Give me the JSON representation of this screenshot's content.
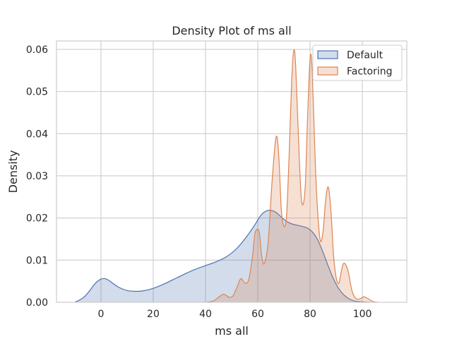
{
  "chart_data": {
    "type": "area",
    "title": "Density Plot of ms all",
    "xlabel": "ms all",
    "ylabel": "Density",
    "xlim": [
      -17,
      117
    ],
    "ylim": [
      0,
      0.062
    ],
    "x_ticks": [
      0,
      20,
      40,
      60,
      80,
      100
    ],
    "y_ticks": [
      0.0,
      0.01,
      0.02,
      0.03,
      0.04,
      0.05,
      0.06
    ],
    "x_tick_labels": [
      "0",
      "20",
      "40",
      "60",
      "80",
      "100"
    ],
    "y_tick_labels": [
      "0.00",
      "0.01",
      "0.02",
      "0.03",
      "0.04",
      "0.05",
      "0.06"
    ],
    "grid": true,
    "legend_position": "top-right",
    "series": [
      {
        "name": "Default",
        "color": "#4c72b0",
        "points": [
          [
            -10,
            0.0
          ],
          [
            -8,
            0.0006
          ],
          [
            -6,
            0.0015
          ],
          [
            -4,
            0.003
          ],
          [
            -2,
            0.0046
          ],
          [
            0,
            0.0055
          ],
          [
            1.5,
            0.0056
          ],
          [
            3,
            0.0052
          ],
          [
            5,
            0.0043
          ],
          [
            7,
            0.0035
          ],
          [
            10,
            0.0028
          ],
          [
            13,
            0.0026
          ],
          [
            16,
            0.0027
          ],
          [
            20,
            0.0033
          ],
          [
            24,
            0.0043
          ],
          [
            28,
            0.0055
          ],
          [
            32,
            0.0067
          ],
          [
            36,
            0.0078
          ],
          [
            40,
            0.0087
          ],
          [
            44,
            0.0096
          ],
          [
            48,
            0.0108
          ],
          [
            52,
            0.0128
          ],
          [
            56,
            0.0158
          ],
          [
            59,
            0.0185
          ],
          [
            61,
            0.0205
          ],
          [
            63,
            0.0216
          ],
          [
            65,
            0.0218
          ],
          [
            67,
            0.0213
          ],
          [
            69,
            0.0202
          ],
          [
            71,
            0.0192
          ],
          [
            73,
            0.0186
          ],
          [
            75,
            0.0183
          ],
          [
            77,
            0.018
          ],
          [
            79,
            0.0176
          ],
          [
            81,
            0.0166
          ],
          [
            83,
            0.0147
          ],
          [
            85,
            0.0118
          ],
          [
            87,
            0.0085
          ],
          [
            89,
            0.0055
          ],
          [
            91,
            0.0032
          ],
          [
            93,
            0.0017
          ],
          [
            95,
            0.0008
          ],
          [
            97,
            0.0003
          ],
          [
            100,
            0.0001
          ],
          [
            103,
            0.0
          ]
        ]
      },
      {
        "name": "Factoring",
        "color": "#dd8452",
        "points": [
          [
            40,
            0.0
          ],
          [
            43,
            0.0003
          ],
          [
            45,
            0.0012
          ],
          [
            47,
            0.0019
          ],
          [
            49,
            0.0012
          ],
          [
            50.5,
            0.0015
          ],
          [
            52,
            0.0035
          ],
          [
            53.5,
            0.0056
          ],
          [
            55,
            0.0046
          ],
          [
            56.5,
            0.0053
          ],
          [
            58,
            0.011
          ],
          [
            59,
            0.0165
          ],
          [
            60.5,
            0.0168
          ],
          [
            61.5,
            0.011
          ],
          [
            62.5,
            0.0092
          ],
          [
            64,
            0.0145
          ],
          [
            65.5,
            0.029
          ],
          [
            67,
            0.0392
          ],
          [
            68,
            0.035
          ],
          [
            69,
            0.022
          ],
          [
            70,
            0.018
          ],
          [
            71,
            0.0205
          ],
          [
            72,
            0.035
          ],
          [
            73,
            0.053
          ],
          [
            73.8,
            0.0598
          ],
          [
            74.5,
            0.056
          ],
          [
            75.5,
            0.04
          ],
          [
            76.5,
            0.026
          ],
          [
            77.3,
            0.0232
          ],
          [
            78.2,
            0.028
          ],
          [
            79,
            0.043
          ],
          [
            80,
            0.0578
          ],
          [
            80.8,
            0.055
          ],
          [
            82,
            0.033
          ],
          [
            83,
            0.0205
          ],
          [
            84,
            0.0145
          ],
          [
            85,
            0.017
          ],
          [
            86,
            0.0245
          ],
          [
            87,
            0.0273
          ],
          [
            88,
            0.0215
          ],
          [
            89,
            0.011
          ],
          [
            90,
            0.0058
          ],
          [
            91,
            0.0045
          ],
          [
            92,
            0.0075
          ],
          [
            93,
            0.0093
          ],
          [
            94.5,
            0.0075
          ],
          [
            96,
            0.0028
          ],
          [
            97.5,
            0.0009
          ],
          [
            99,
            0.0008
          ],
          [
            100.5,
            0.0013
          ],
          [
            102,
            0.0009
          ],
          [
            104,
            0.0002
          ],
          [
            106,
            0.0
          ]
        ]
      }
    ]
  }
}
